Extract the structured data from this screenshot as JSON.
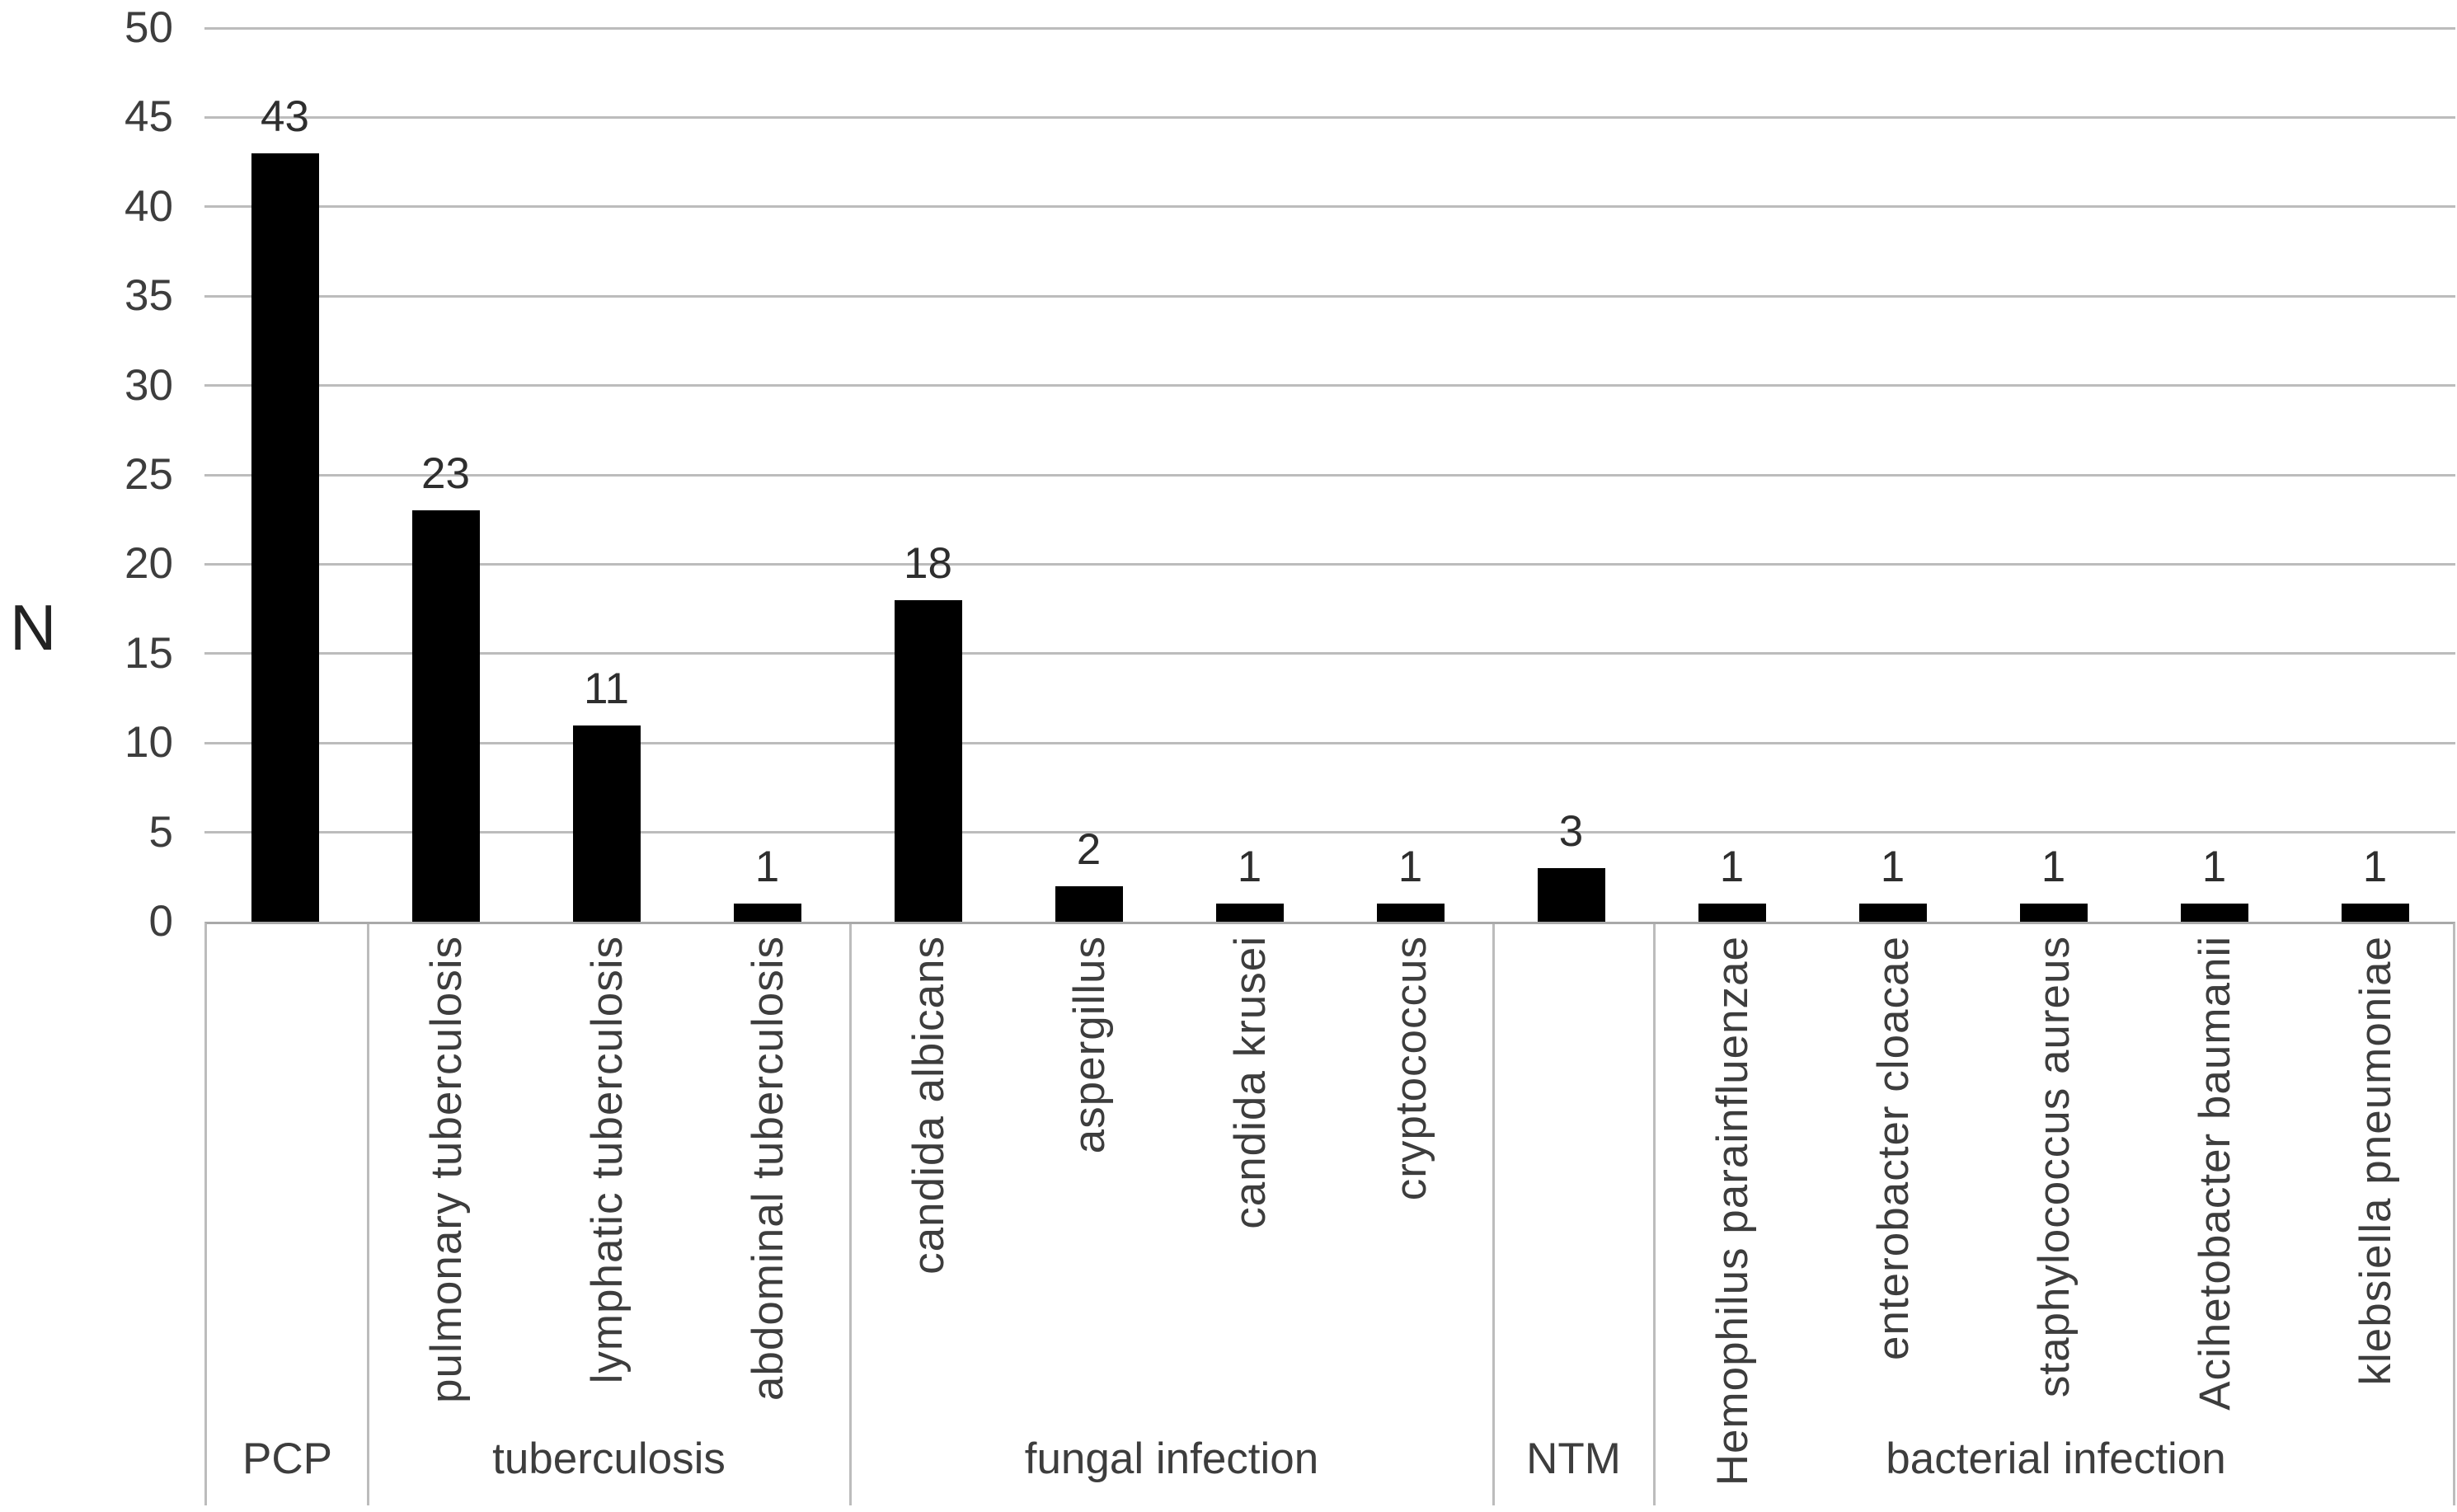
{
  "chart_data": {
    "type": "bar",
    "title": "",
    "xlabel": "",
    "ylabel": "N",
    "ylim": [
      0,
      50
    ],
    "ytick_step": 5,
    "yticks": [
      0,
      5,
      10,
      15,
      20,
      25,
      30,
      35,
      40,
      45,
      50
    ],
    "grid": "horizontal",
    "legend": "none",
    "bars": [
      {
        "label": "",
        "group": "PCP",
        "value": 43
      },
      {
        "label": "pulmonary tuberculosis",
        "group": "tuberculosis",
        "value": 23
      },
      {
        "label": "lymphatic tuberculosis",
        "group": "tuberculosis",
        "value": 11
      },
      {
        "label": "abdominal tuberculosis",
        "group": "tuberculosis",
        "value": 1
      },
      {
        "label": "candida albicans",
        "group": "fungal infection",
        "value": 18
      },
      {
        "label": "aspergillus",
        "group": "fungal infection",
        "value": 2
      },
      {
        "label": "candida krusei",
        "group": "fungal infection",
        "value": 1
      },
      {
        "label": "cryptococcus",
        "group": "fungal infection",
        "value": 1
      },
      {
        "label": "",
        "group": "NTM",
        "value": 3
      },
      {
        "label": "Hemophilus parainfluenzae",
        "group": "bacterial infection",
        "value": 1
      },
      {
        "label": "enterobacter cloacae",
        "group": "bacterial infection",
        "value": 1
      },
      {
        "label": "staphylococcus aureus",
        "group": "bacterial infection",
        "value": 1
      },
      {
        "label": "Acihetobacter baumanii",
        "group": "bacterial infection",
        "value": 1
      },
      {
        "label": "klebsiella pneumoniae",
        "group": "bacterial infection",
        "value": 1
      }
    ],
    "groups": [
      {
        "name": "PCP",
        "slots": 1
      },
      {
        "name": "tuberculosis",
        "slots": 3
      },
      {
        "name": "fungal infection",
        "slots": 4
      },
      {
        "name": "NTM",
        "slots": 1
      },
      {
        "name": "bacterial infection",
        "slots": 5
      }
    ],
    "colors": {
      "bar": "#000000",
      "gridline": "#bcbcbc",
      "axis_line": "#a9a9a9",
      "table_border": "#bcbcbc",
      "text": "#3d3d3d",
      "axis_title_text": "#222222",
      "background": "#ffffff"
    }
  }
}
